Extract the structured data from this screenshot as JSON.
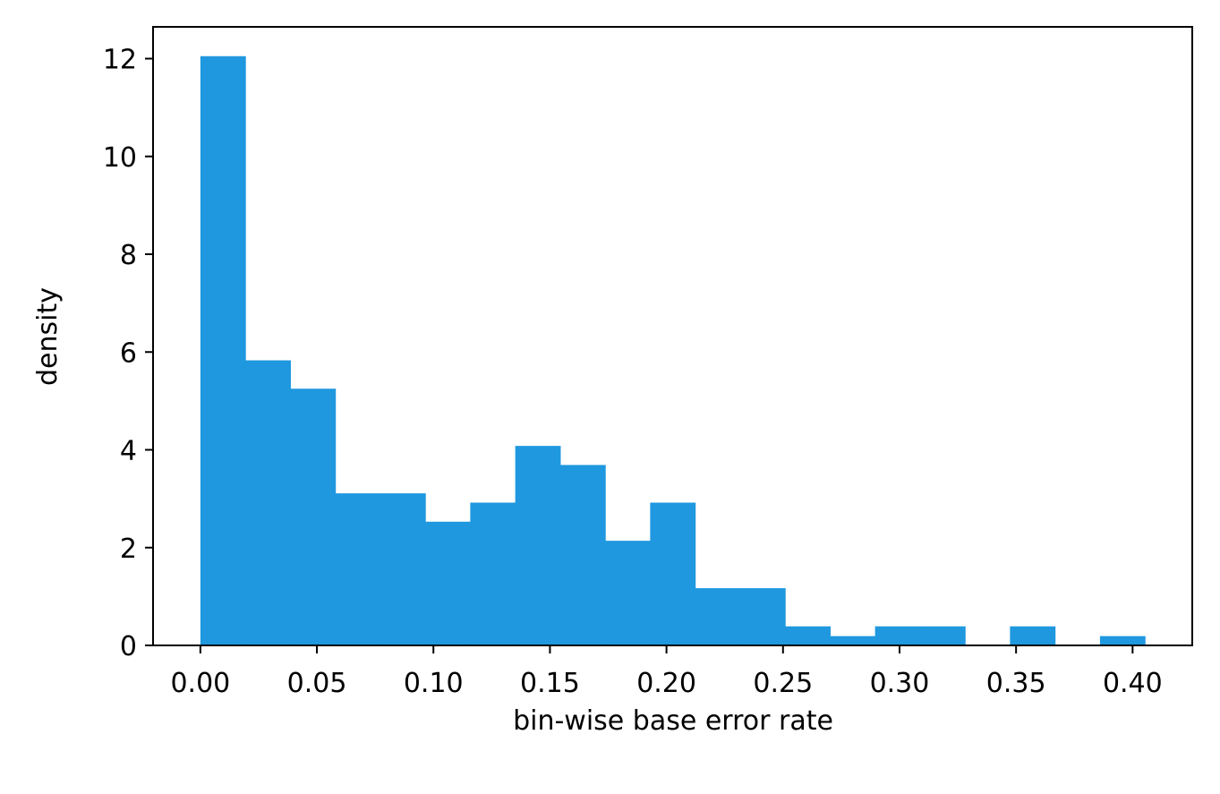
{
  "chart_data": {
    "type": "bar",
    "title": "",
    "xlabel": "bin-wise base error rate",
    "ylabel": "density",
    "bin_edges": [
      0.0,
      0.0193,
      0.0386,
      0.0579,
      0.0772,
      0.0965,
      0.1158,
      0.1351,
      0.1544,
      0.1737,
      0.193,
      0.2123,
      0.2316,
      0.2509,
      0.2702,
      0.2895,
      0.3088,
      0.3281,
      0.3474,
      0.3667,
      0.386,
      0.4053
    ],
    "values": [
      12.05,
      5.83,
      5.25,
      3.11,
      3.11,
      2.53,
      2.92,
      4.08,
      3.69,
      2.14,
      2.92,
      1.17,
      1.17,
      0.39,
      0.19,
      0.39,
      0.39,
      0.0,
      0.39,
      0.0,
      0.19
    ],
    "xlim": [
      -0.0203,
      0.4256
    ],
    "ylim": [
      0,
      12.65
    ],
    "xticks": [
      0.0,
      0.05,
      0.1,
      0.15,
      0.2,
      0.25,
      0.3,
      0.35,
      0.4
    ],
    "xtick_labels": [
      "0.00",
      "0.05",
      "0.10",
      "0.15",
      "0.20",
      "0.25",
      "0.30",
      "0.35",
      "0.40"
    ],
    "yticks": [
      0,
      2,
      4,
      6,
      8,
      10,
      12
    ],
    "ytick_labels": [
      "0",
      "2",
      "4",
      "6",
      "8",
      "10",
      "12"
    ],
    "grid": false,
    "legend": "none",
    "colors": {
      "bar": "#1f98df",
      "axis": "#000000"
    }
  }
}
